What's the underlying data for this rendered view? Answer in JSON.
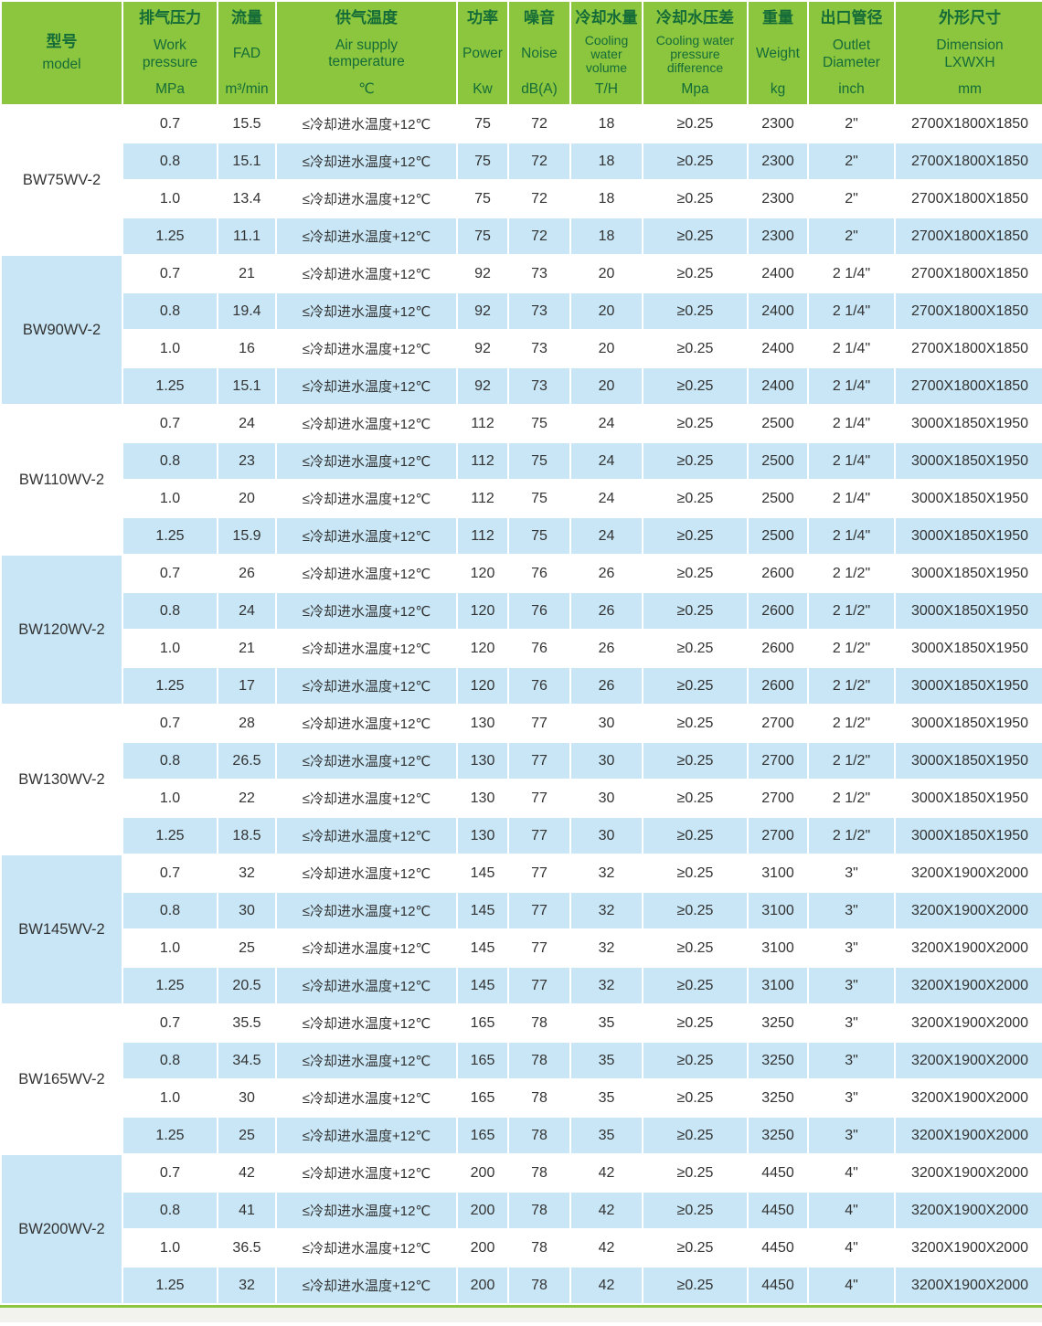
{
  "colors": {
    "header_green": "#8CC63E",
    "header_text_green": "#156C38",
    "row_blue": "#C8E6F5",
    "body_text": "#333333",
    "bottom_line_green": "#8CC63E"
  },
  "table": {
    "columns": [
      {
        "zh": "型号",
        "en": "model",
        "unit": ""
      },
      {
        "zh": "排气压力",
        "en": "Work\npressure",
        "unit": "MPa"
      },
      {
        "zh": "流量",
        "en": "FAD",
        "unit": "m³/min"
      },
      {
        "zh": "供气温度",
        "en": "Air supply\ntemperature",
        "unit": "℃"
      },
      {
        "zh": "功率",
        "en": "Power",
        "unit": "Kw"
      },
      {
        "zh": "噪音",
        "en": "Noise",
        "unit": "dB(A)"
      },
      {
        "zh": "冷却水量",
        "en": "Cooling\nwater\nvolume",
        "unit": "T/H"
      },
      {
        "zh": "冷却水压差",
        "en": "Cooling water\npressure\ndifference",
        "unit": "Mpa"
      },
      {
        "zh": "重量",
        "en": "Weight",
        "unit": "kg"
      },
      {
        "zh": "出口管径",
        "en": "Outlet\nDiameter",
        "unit": "inch"
      },
      {
        "zh": "外形尺寸",
        "en": "Dimension\nLXWXH",
        "unit": "mm"
      }
    ],
    "groups": [
      {
        "model": "BW75WV-2",
        "rows": [
          [
            "0.7",
            "15.5",
            "≤冷却进水温度+12℃",
            "75",
            "72",
            "18",
            "≥0.25",
            "2300",
            "2\"",
            "2700X1800X1850"
          ],
          [
            "0.8",
            "15.1",
            "≤冷却进水温度+12℃",
            "75",
            "72",
            "18",
            "≥0.25",
            "2300",
            "2\"",
            "2700X1800X1850"
          ],
          [
            "1.0",
            "13.4",
            "≤冷却进水温度+12℃",
            "75",
            "72",
            "18",
            "≥0.25",
            "2300",
            "2\"",
            "2700X1800X1850"
          ],
          [
            "1.25",
            "11.1",
            "≤冷却进水温度+12℃",
            "75",
            "72",
            "18",
            "≥0.25",
            "2300",
            "2\"",
            "2700X1800X1850"
          ]
        ]
      },
      {
        "model": "BW90WV-2",
        "rows": [
          [
            "0.7",
            "21",
            "≤冷却进水温度+12℃",
            "92",
            "73",
            "20",
            "≥0.25",
            "2400",
            "2 1/4\"",
            "2700X1800X1850"
          ],
          [
            "0.8",
            "19.4",
            "≤冷却进水温度+12℃",
            "92",
            "73",
            "20",
            "≥0.25",
            "2400",
            "2 1/4\"",
            "2700X1800X1850"
          ],
          [
            "1.0",
            "16",
            "≤冷却进水温度+12℃",
            "92",
            "73",
            "20",
            "≥0.25",
            "2400",
            "2 1/4\"",
            "2700X1800X1850"
          ],
          [
            "1.25",
            "15.1",
            "≤冷却进水温度+12℃",
            "92",
            "73",
            "20",
            "≥0.25",
            "2400",
            "2 1/4\"",
            "2700X1800X1850"
          ]
        ]
      },
      {
        "model": "BW110WV-2",
        "rows": [
          [
            "0.7",
            "24",
            "≤冷却进水温度+12℃",
            "112",
            "75",
            "24",
            "≥0.25",
            "2500",
            "2 1/4\"",
            "3000X1850X1950"
          ],
          [
            "0.8",
            "23",
            "≤冷却进水温度+12℃",
            "112",
            "75",
            "24",
            "≥0.25",
            "2500",
            "2 1/4\"",
            "3000X1850X1950"
          ],
          [
            "1.0",
            "20",
            "≤冷却进水温度+12℃",
            "112",
            "75",
            "24",
            "≥0.25",
            "2500",
            "2 1/4\"",
            "3000X1850X1950"
          ],
          [
            "1.25",
            "15.9",
            "≤冷却进水温度+12℃",
            "112",
            "75",
            "24",
            "≥0.25",
            "2500",
            "2 1/4\"",
            "3000X1850X1950"
          ]
        ]
      },
      {
        "model": "BW120WV-2",
        "rows": [
          [
            "0.7",
            "26",
            "≤冷却进水温度+12℃",
            "120",
            "76",
            "26",
            "≥0.25",
            "2600",
            "2 1/2\"",
            "3000X1850X1950"
          ],
          [
            "0.8",
            "24",
            "≤冷却进水温度+12℃",
            "120",
            "76",
            "26",
            "≥0.25",
            "2600",
            "2 1/2\"",
            "3000X1850X1950"
          ],
          [
            "1.0",
            "21",
            "≤冷却进水温度+12℃",
            "120",
            "76",
            "26",
            "≥0.25",
            "2600",
            "2 1/2\"",
            "3000X1850X1950"
          ],
          [
            "1.25",
            "17",
            "≤冷却进水温度+12℃",
            "120",
            "76",
            "26",
            "≥0.25",
            "2600",
            "2 1/2\"",
            "3000X1850X1950"
          ]
        ]
      },
      {
        "model": "BW130WV-2",
        "rows": [
          [
            "0.7",
            "28",
            "≤冷却进水温度+12℃",
            "130",
            "77",
            "30",
            "≥0.25",
            "2700",
            "2 1/2\"",
            "3000X1850X1950"
          ],
          [
            "0.8",
            "26.5",
            "≤冷却进水温度+12℃",
            "130",
            "77",
            "30",
            "≥0.25",
            "2700",
            "2 1/2\"",
            "3000X1850X1950"
          ],
          [
            "1.0",
            "22",
            "≤冷却进水温度+12℃",
            "130",
            "77",
            "30",
            "≥0.25",
            "2700",
            "2 1/2\"",
            "3000X1850X1950"
          ],
          [
            "1.25",
            "18.5",
            "≤冷却进水温度+12℃",
            "130",
            "77",
            "30",
            "≥0.25",
            "2700",
            "2 1/2\"",
            "3000X1850X1950"
          ]
        ]
      },
      {
        "model": "BW145WV-2",
        "rows": [
          [
            "0.7",
            "32",
            "≤冷却进水温度+12℃",
            "145",
            "77",
            "32",
            "≥0.25",
            "3100",
            "3\"",
            "3200X1900X2000"
          ],
          [
            "0.8",
            "30",
            "≤冷却进水温度+12℃",
            "145",
            "77",
            "32",
            "≥0.25",
            "3100",
            "3\"",
            "3200X1900X2000"
          ],
          [
            "1.0",
            "25",
            "≤冷却进水温度+12℃",
            "145",
            "77",
            "32",
            "≥0.25",
            "3100",
            "3\"",
            "3200X1900X2000"
          ],
          [
            "1.25",
            "20.5",
            "≤冷却进水温度+12℃",
            "145",
            "77",
            "32",
            "≥0.25",
            "3100",
            "3\"",
            "3200X1900X2000"
          ]
        ]
      },
      {
        "model": "BW165WV-2",
        "rows": [
          [
            "0.7",
            "35.5",
            "≤冷却进水温度+12℃",
            "165",
            "78",
            "35",
            "≥0.25",
            "3250",
            "3\"",
            "3200X1900X2000"
          ],
          [
            "0.8",
            "34.5",
            "≤冷却进水温度+12℃",
            "165",
            "78",
            "35",
            "≥0.25",
            "3250",
            "3\"",
            "3200X1900X2000"
          ],
          [
            "1.0",
            "30",
            "≤冷却进水温度+12℃",
            "165",
            "78",
            "35",
            "≥0.25",
            "3250",
            "3\"",
            "3200X1900X2000"
          ],
          [
            "1.25",
            "25",
            "≤冷却进水温度+12℃",
            "165",
            "78",
            "35",
            "≥0.25",
            "3250",
            "3\"",
            "3200X1900X2000"
          ]
        ]
      },
      {
        "model": "BW200WV-2",
        "rows": [
          [
            "0.7",
            "42",
            "≤冷却进水温度+12℃",
            "200",
            "78",
            "42",
            "≥0.25",
            "4450",
            "4\"",
            "3200X1900X2000"
          ],
          [
            "0.8",
            "41",
            "≤冷却进水温度+12℃",
            "200",
            "78",
            "42",
            "≥0.25",
            "4450",
            "4\"",
            "3200X1900X2000"
          ],
          [
            "1.0",
            "36.5",
            "≤冷却进水温度+12℃",
            "200",
            "78",
            "42",
            "≥0.25",
            "4450",
            "4\"",
            "3200X1900X2000"
          ],
          [
            "1.25",
            "32",
            "≤冷却进水温度+12℃",
            "200",
            "78",
            "42",
            "≥0.25",
            "4450",
            "4\"",
            "3200X1900X2000"
          ]
        ]
      }
    ]
  }
}
